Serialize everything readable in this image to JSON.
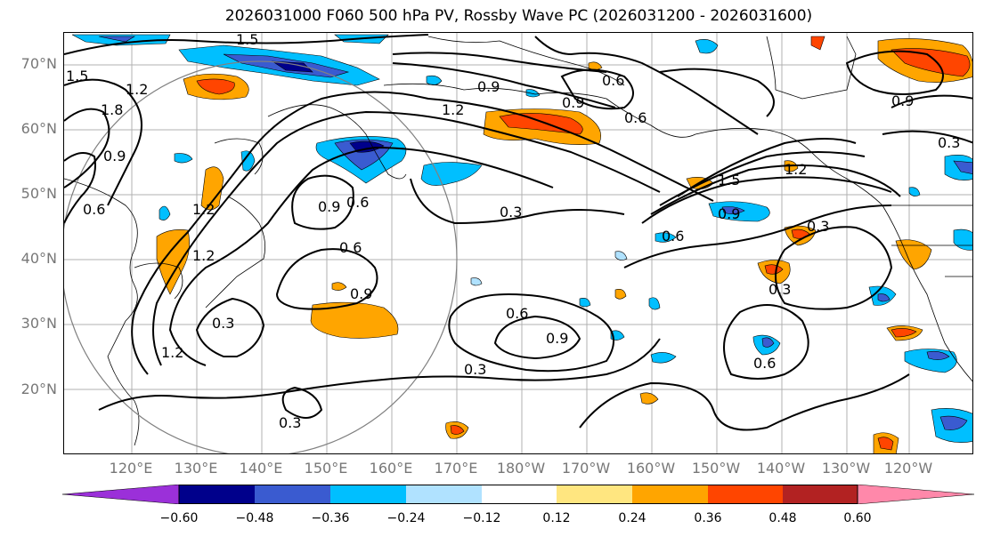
{
  "title": "2026031000 F060 500 hPa PV, Rossby Wave PC (2026031200 - 2026031600)",
  "lat_labels": [
    "70°N",
    "60°N",
    "50°N",
    "40°N",
    "30°N",
    "20°N"
  ],
  "lon_labels": [
    "120°E",
    "130°E",
    "140°E",
    "150°E",
    "160°E",
    "170°E",
    "180°W",
    "170°W",
    "160°W",
    "150°W",
    "140°W",
    "130°W",
    "120°W"
  ],
  "contour_labels": [
    "1.5",
    "1.5",
    "1.2",
    "1.8",
    "0.9",
    "0.6",
    "0.9",
    "0.9",
    "0.6",
    "1.2",
    "0.9",
    "0.3",
    "0.6",
    "1.2",
    "1.5",
    "0.9",
    "0.3",
    "0.6",
    "0.3",
    "0.6",
    "0.9",
    "0.6",
    "0.3",
    "0.9",
    "0.3",
    "0.6",
    "0.6",
    "0.3",
    "0.3",
    "1.2",
    "1.2",
    "0.9",
    "1.2"
  ],
  "colorbar": {
    "colors": [
      "#9b30d9",
      "#00008b",
      "#3a5bd0",
      "#00bfff",
      "#b0e2ff",
      "#ffffff",
      "#ffe680",
      "#ffa500",
      "#ff4500",
      "#b22222",
      "#ff88aa"
    ],
    "ticks": [
      "−0.60",
      "−0.48",
      "−0.36",
      "−0.24",
      "−0.12",
      "0.12",
      "0.24",
      "0.36",
      "0.48",
      "0.60"
    ]
  }
}
